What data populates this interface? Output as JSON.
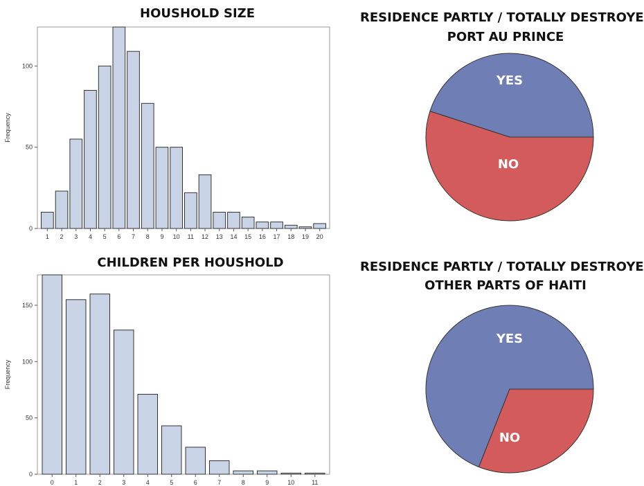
{
  "colors": {
    "bar_fill": "#c9d3e6",
    "bar_stroke": "#333333",
    "pie_yes": "#6f7fb5",
    "pie_no": "#d35b5b",
    "frame": "#9a9a9a"
  },
  "chart_data": [
    {
      "id": "household-size",
      "type": "bar",
      "title": "HOUSHOLD SIZE",
      "ylabel": "Frequency",
      "xlabel": "",
      "categories": [
        "1",
        "2",
        "3",
        "4",
        "5",
        "6",
        "7",
        "8",
        "9",
        "10",
        "11",
        "12",
        "13",
        "14",
        "15",
        "16",
        "17",
        "18",
        "19",
        "20"
      ],
      "values": [
        10,
        23,
        55,
        85,
        100,
        124,
        109,
        77,
        50,
        50,
        22,
        33,
        10,
        10,
        7,
        4,
        4,
        2,
        1,
        3
      ],
      "ylim": [
        0,
        124
      ],
      "yticks": [
        0,
        50,
        100
      ],
      "grid": false
    },
    {
      "id": "children-per-household",
      "type": "bar",
      "title": "CHILDREN PER HOUSHOLD",
      "ylabel": "Frequency",
      "xlabel": "",
      "categories": [
        "0",
        "1",
        "2",
        "3",
        "4",
        "5",
        "6",
        "7",
        "8",
        "9",
        "10",
        "11"
      ],
      "values": [
        177,
        155,
        160,
        128,
        71,
        43,
        24,
        12,
        3,
        3,
        1,
        1
      ],
      "ylim": [
        0,
        177
      ],
      "yticks": [
        0,
        50,
        100,
        150
      ],
      "grid": false
    },
    {
      "id": "residence-port-au-prince",
      "type": "pie",
      "title_lines": [
        "RESIDENCE PARTLY / TOTALLY DESTROYED",
        "PORT AU PRINCE"
      ],
      "slices": [
        {
          "label": "YES",
          "value": 45
        },
        {
          "label": "NO",
          "value": 55
        }
      ]
    },
    {
      "id": "residence-other-parts",
      "type": "pie",
      "title_lines": [
        "RESIDENCE PARTLY / TOTALLY DESTROYED",
        "OTHER PARTS OF HAITI"
      ],
      "slices": [
        {
          "label": "YES",
          "value": 69
        },
        {
          "label": "NO",
          "value": 31
        }
      ]
    }
  ]
}
